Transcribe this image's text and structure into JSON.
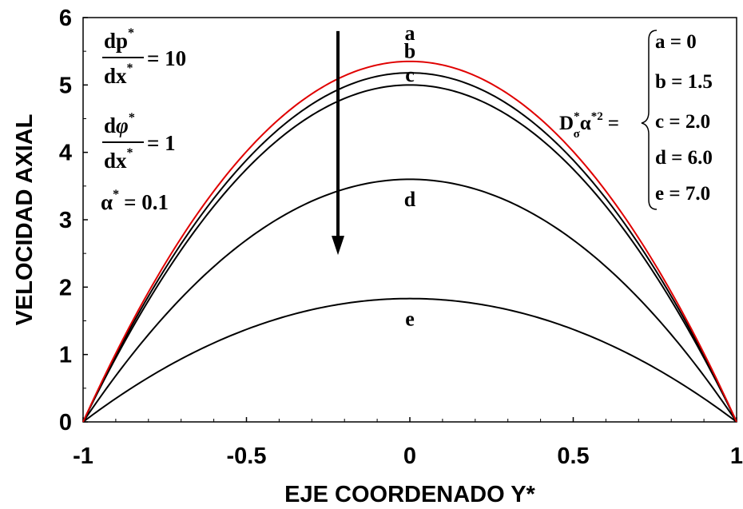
{
  "chart_data": {
    "type": "line",
    "xlabel": "EJE COORDENADO Y*",
    "ylabel": "VELOCIDAD  AXIAL",
    "xlim": [
      -1,
      1
    ],
    "ylim": [
      0,
      6
    ],
    "x_ticks": [
      -1,
      -0.5,
      0,
      0.5,
      1
    ],
    "x_tick_labels": [
      "-1",
      "-0.5",
      "0",
      "0.5",
      "1"
    ],
    "y_ticks": [
      0,
      1,
      2,
      3,
      4,
      5,
      6
    ],
    "y_tick_labels": [
      "0",
      "1",
      "2",
      "3",
      "4",
      "5",
      "6"
    ],
    "grid": false,
    "series": [
      {
        "name": "a",
        "peak": 5.35,
        "color": "#e00000",
        "values_note": "parabola u = peak*(1-y^2)"
      },
      {
        "name": "b",
        "peak": 5.18,
        "color": "#000000"
      },
      {
        "name": "c",
        "peak": 5.0,
        "color": "#000000"
      },
      {
        "name": "d",
        "peak": 3.6,
        "color": "#000000"
      },
      {
        "name": "e",
        "peak": 1.83,
        "color": "#000000"
      }
    ],
    "curve_labels": [
      "a",
      "b",
      "c",
      "d",
      "e"
    ],
    "arrow": {
      "direction": "down",
      "x_from": -0.22,
      "x_to": -0.22,
      "y_from": 5.8,
      "y_to": 2.5
    },
    "annotations": {
      "dp_num": "dp",
      "dp_sup": "*",
      "dp_den": "dx",
      "dp_den_sup": "*",
      "dp_value": "= 10",
      "dphi_num": "d",
      "dphi_sym": "φ",
      "dphi_sup": "*",
      "dphi_den": "dx",
      "dphi_den_sup": "*",
      "dphi_value": "= 1",
      "alpha_label": "α",
      "alpha_sup": "*",
      "alpha_value": "= 0.1",
      "param_D": "D",
      "param_D_sub": "σ",
      "param_D_sup": "*",
      "param_alpha": "α",
      "param_alpha_sup": "*2",
      "param_eq": "=",
      "legend_items": [
        "a = 0",
        "b = 1.5",
        "c = 2.0",
        "d = 6.0",
        "e = 7.0"
      ]
    }
  }
}
